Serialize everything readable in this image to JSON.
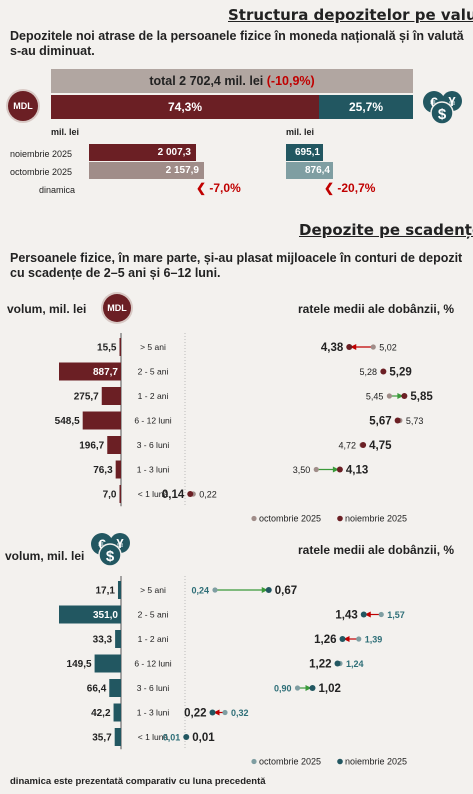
{
  "section1": {
    "title": "Structura depozitelor pe valute",
    "description": "Depozitele noi atrase de la persoanele fizice în moneda națională și în valută s-au diminuat.",
    "total_label": "total 2 702,4 mil. lei",
    "total_change": "(-10,9%)",
    "mdl_share": "74,3%",
    "fx_share": "25,7%",
    "mdl_badge": "MDL",
    "unit_left": "mil. lei",
    "unit_right": "mil. lei",
    "rows": [
      "noiembrie 2025",
      "octombrie 2025",
      "dinamica"
    ],
    "mdl_values": {
      "nov": "2 007,3",
      "oct": "2 157,9",
      "dyn": "-7,0%"
    },
    "fx_values": {
      "nov": "695,1",
      "oct": "876,4",
      "dyn": "-20,7%"
    }
  },
  "section2": {
    "title": "Depozite pe scadențe",
    "description": "Persoanele fizice, în mare parte, și-au plasat mijloacele în conturi de depozit cu scadențe de 2–5 ani și 6–12 luni.",
    "volume_label": "volum, mil. lei",
    "rate_label": "ratele medii ale dobânzii, %",
    "legend_oct": "octombrie 2025",
    "legend_nov": "noiembrie 2025",
    "footnote": "dinamica este prezentată comparativ cu luna precedentă"
  },
  "colors": {
    "mdl": "#6b1f24",
    "mdl_light": "#a08d89",
    "fx": "#225761",
    "fx_light": "#7f9ea2",
    "green": "#3a9a3a",
    "neg": "#c00000"
  },
  "icons": [
    "mdl-badge-icon",
    "currency-exchange-icon",
    "arrow-left-icon"
  ],
  "chart_data": [
    {
      "type": "bar",
      "title": "volum, mil. lei (MDL)",
      "categories": [
        "> 5 ani",
        "2 - 5 ani",
        "1 - 2 ani",
        "6 - 12 luni",
        "3 - 6 luni",
        "1 - 3 luni",
        "< 1 lună"
      ],
      "values": [
        15.5,
        887.7,
        275.7,
        548.5,
        196.7,
        76.3,
        7.0
      ],
      "labels": [
        "15,5",
        "887,7",
        "275,7",
        "548,5",
        "196,7",
        "76,3",
        "7,0"
      ]
    },
    {
      "type": "scatter",
      "title": "ratele medii ale dobânzii, % (MDL)",
      "categories": [
        "> 5 ani",
        "2 - 5 ani",
        "1 - 2 ani",
        "6 - 12 luni",
        "3 - 6 luni",
        "1 - 3 luni",
        "< 1 lună"
      ],
      "series": [
        {
          "name": "octombrie 2025",
          "values": [
            5.02,
            5.28,
            5.45,
            5.73,
            4.72,
            3.5,
            0.22
          ],
          "labels": [
            "5,02",
            "5,28",
            "5,45",
            "5,73",
            "4,72",
            "3,50",
            "0,22"
          ]
        },
        {
          "name": "noiembrie 2025",
          "values": [
            4.38,
            5.29,
            5.85,
            5.67,
            4.75,
            4.13,
            0.14
          ],
          "labels": [
            "4,38",
            "5,29",
            "5,85",
            "5,67",
            "4,75",
            "4,13",
            "0,14"
          ]
        }
      ]
    },
    {
      "type": "bar",
      "title": "volum, mil. lei (valută)",
      "categories": [
        "> 5 ani",
        "2 - 5 ani",
        "1 - 2 ani",
        "6 - 12 luni",
        "3 - 6 luni",
        "1 - 3 luni",
        "< 1 lună"
      ],
      "values": [
        17.1,
        351.0,
        33.3,
        149.5,
        66.4,
        42.2,
        35.7
      ],
      "labels": [
        "17,1",
        "351,0",
        "33,3",
        "149,5",
        "66,4",
        "42,2",
        "35,7"
      ]
    },
    {
      "type": "scatter",
      "title": "ratele medii ale dobânzii, % (valută)",
      "categories": [
        "> 5 ani",
        "2 - 5 ani",
        "1 - 2 ani",
        "6 - 12 luni",
        "3 - 6 luni",
        "1 - 3 luni",
        "< 1 lună"
      ],
      "series": [
        {
          "name": "octombrie 2025",
          "values": [
            0.24,
            1.57,
            1.39,
            1.24,
            0.9,
            0.32,
            0.01
          ],
          "labels": [
            "0,24",
            "1,57",
            "1,39",
            "1,24",
            "0,90",
            "0,32",
            "0,01"
          ]
        },
        {
          "name": "noiembrie 2025",
          "values": [
            0.67,
            1.43,
            1.26,
            1.22,
            1.02,
            0.22,
            0.01
          ],
          "labels": [
            "0,67",
            "1,43",
            "1,26",
            "1,22",
            "1,02",
            "0,22",
            "0,01"
          ]
        }
      ]
    }
  ]
}
